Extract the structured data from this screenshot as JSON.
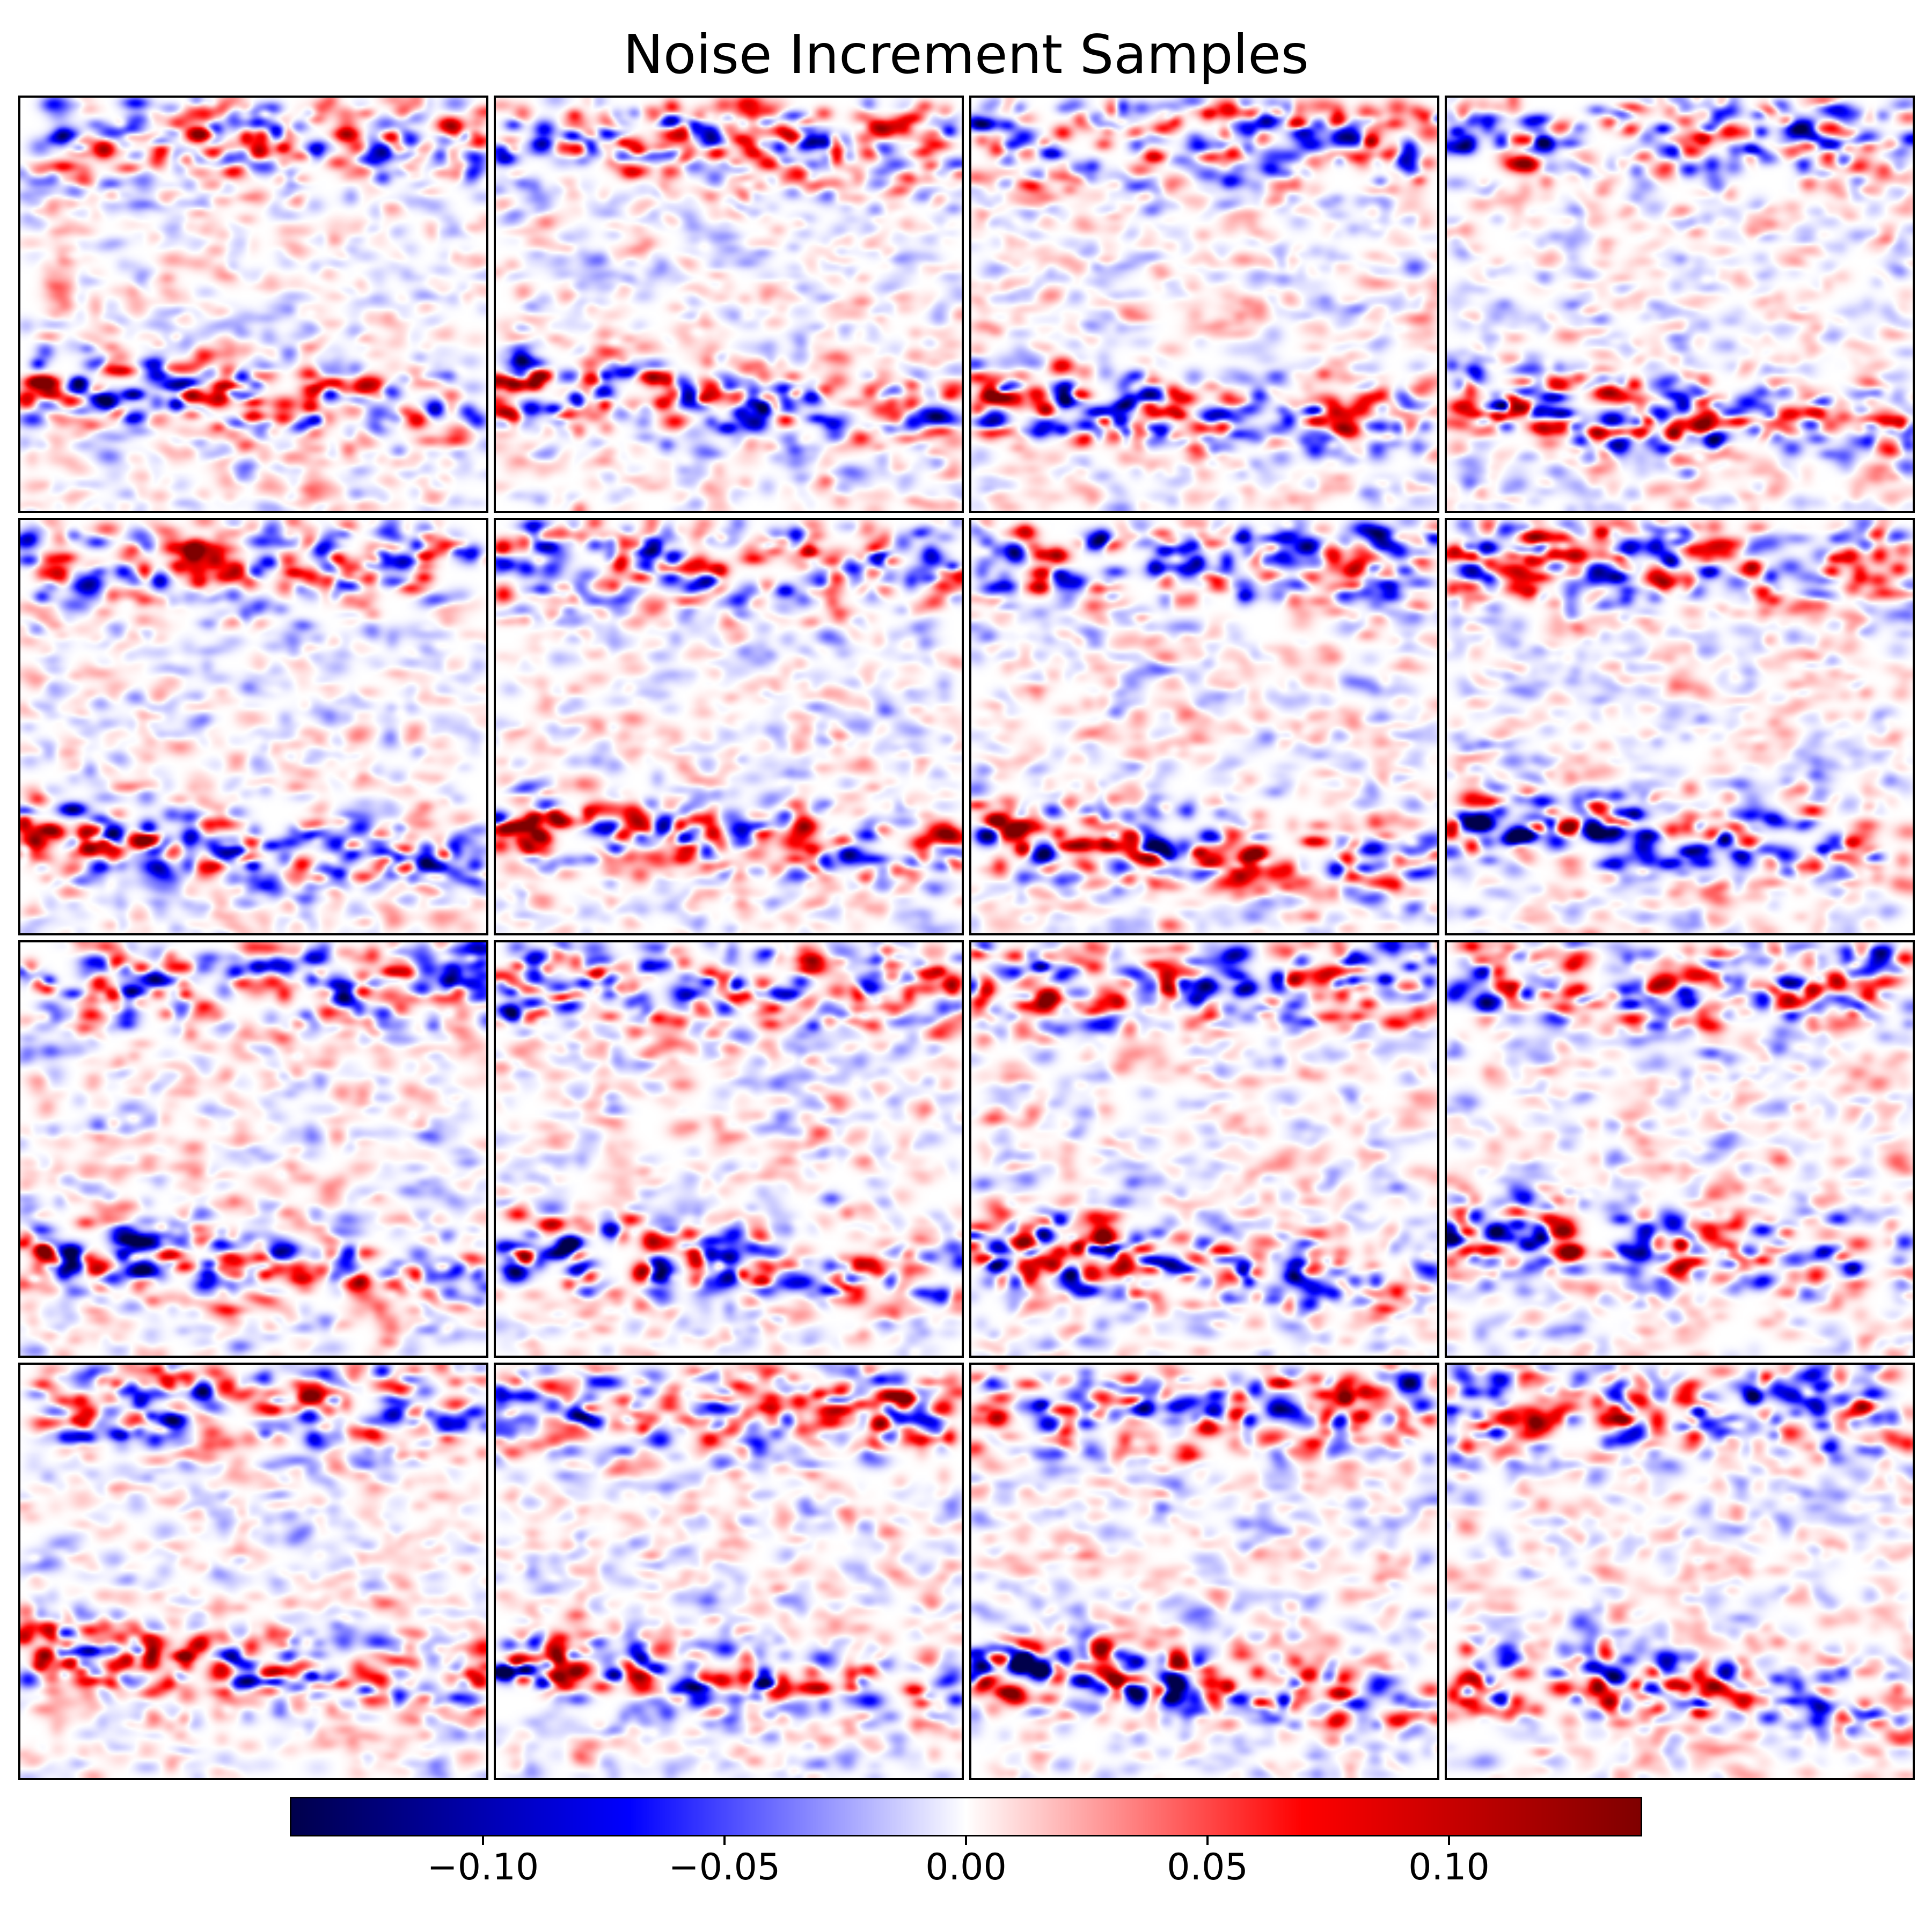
{
  "chart_data": {
    "type": "heatmap",
    "title": "Noise Increment Samples",
    "panel_rows": 4,
    "panel_cols": 4,
    "colormap": "seismic",
    "value_range": [
      -0.14,
      0.14
    ],
    "colorbar": {
      "orientation": "horizontal",
      "ticks": [
        -0.1,
        -0.05,
        0.0,
        0.05,
        0.1
      ],
      "tick_labels": [
        "−0.10",
        "−0.05",
        "0.00",
        "0.05",
        "0.10"
      ]
    },
    "axes_visible": false,
    "colors": {
      "negative_max": "#000066",
      "negative": "#0000ff",
      "zero": "#ffffff",
      "positive": "#ff0000",
      "positive_max": "#800000"
    }
  }
}
